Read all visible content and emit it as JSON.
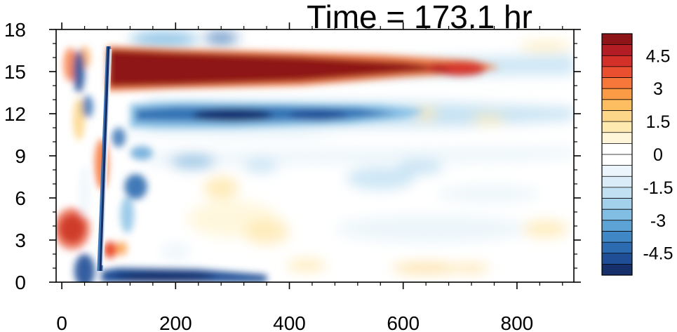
{
  "chart_data": {
    "type": "heatmap",
    "title": "Time = 173.1 hr",
    "xlabel": "",
    "ylabel": "",
    "xlim": [
      -10,
      900
    ],
    "ylim": [
      0,
      18
    ],
    "x_ticks": [
      0,
      200,
      400,
      600,
      800
    ],
    "y_ticks": [
      0,
      3,
      6,
      9,
      12,
      15,
      18
    ],
    "colorbar": {
      "levels": [
        -5.5,
        -5,
        -4.5,
        -4,
        -3.5,
        -3,
        -2.5,
        -2,
        -1.5,
        -1,
        -0.5,
        0,
        0.5,
        1,
        1.5,
        2,
        2.5,
        3,
        3.5,
        4,
        4.5,
        5,
        5.5
      ],
      "labels": [
        "4.5",
        "3",
        "1.5",
        "0",
        "-1.5",
        "-3",
        "-4.5"
      ],
      "label_values": [
        4.5,
        3,
        1.5,
        0,
        -1.5,
        -3,
        -4.5
      ],
      "colors": [
        "#172f6b",
        "#1f4e96",
        "#2c6bb0",
        "#3f87c5",
        "#5ea3d6",
        "#82bde3",
        "#a3d1ec",
        "#c1e0f2",
        "#d9ecf7",
        "#ebf5fb",
        "#ffffff",
        "#ffffff",
        "#fff6d9",
        "#fee9b0",
        "#fdd789",
        "#fdbd61",
        "#fb9b46",
        "#f7773a",
        "#ea4f30",
        "#d3302a",
        "#b51d24",
        "#8f1418"
      ]
    },
    "features": [
      {
        "name": "upper warm band",
        "x": [
          80,
          760
        ],
        "y": [
          13.5,
          16.8
        ],
        "value": 5.5
      },
      {
        "name": "cold band",
        "x": [
          120,
          600
        ],
        "y": [
          11,
          12.8
        ],
        "value": -4.5
      },
      {
        "name": "lower cold strip",
        "x": [
          70,
          360
        ],
        "y": [
          0,
          0.8
        ],
        "value": -5
      },
      {
        "name": "surface warm blob",
        "x": [
          10,
          60
        ],
        "y": [
          2.5,
          5
        ],
        "value": 4
      }
    ]
  }
}
